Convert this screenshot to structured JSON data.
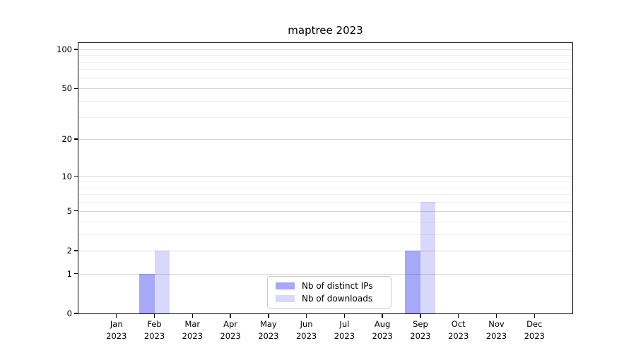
{
  "chart_data": {
    "type": "bar",
    "title": "maptree 2023",
    "categories": [
      "Jan",
      "Feb",
      "Mar",
      "Apr",
      "May",
      "Jun",
      "Jul",
      "Aug",
      "Sep",
      "Oct",
      "Nov",
      "Dec"
    ],
    "category_year": "2023",
    "series": [
      {
        "name": "Nb of distinct IPs",
        "color": "#a8a8fa",
        "values": [
          0,
          1,
          0,
          0,
          0,
          0,
          0,
          0,
          2,
          0,
          0,
          0
        ]
      },
      {
        "name": "Nb of downloads",
        "color": "#d8d8fa",
        "values": [
          0,
          2,
          0,
          0,
          0,
          0,
          0,
          0,
          6,
          0,
          0,
          0
        ]
      }
    ],
    "xlabel": "",
    "ylabel": "",
    "yscale": "log1p",
    "yticks": [
      0,
      1,
      2,
      5,
      10,
      20,
      50,
      100
    ],
    "yticks_minor": [
      3,
      4,
      6,
      7,
      8,
      9,
      30,
      40,
      60,
      70,
      80,
      90
    ],
    "ylim": [
      0,
      110
    ],
    "grid": "on",
    "grid_over_bars": true,
    "legend_position": "lower center",
    "colors": {
      "spine": "#000000",
      "text": "#000000",
      "grid_major": "#00000028",
      "grid_minor": "#00000011",
      "legend_border": "#cccccc",
      "legend_background": "#ffffff",
      "figure_background": "#ffffff"
    }
  }
}
